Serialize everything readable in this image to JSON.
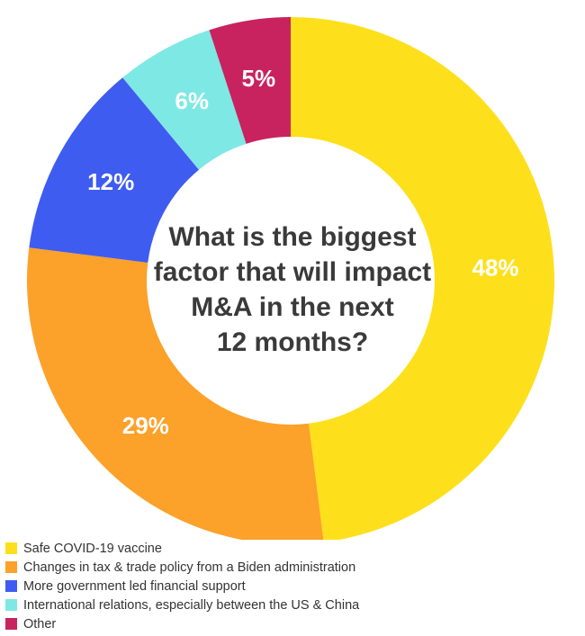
{
  "chart_data": {
    "type": "pie",
    "variant": "donut",
    "title_lines": [
      "What is the biggest",
      "factor that will impact",
      "M&A in the next",
      "12 months?"
    ],
    "slices": [
      {
        "label": "Safe COVID-19 vaccine",
        "value": 48,
        "display": "48%",
        "color": "#fde01b"
      },
      {
        "label": "Changes in tax & trade policy from a Biden administration",
        "value": 29,
        "display": "29%",
        "color": "#fca12a"
      },
      {
        "label": "More government led financial support",
        "value": 12,
        "display": "12%",
        "color": "#3f5cf0"
      },
      {
        "label": "International relations, especially between the US & China",
        "value": 6,
        "display": "6%",
        "color": "#7ee8e4"
      },
      {
        "label": "Other",
        "value": 5,
        "display": "5%",
        "color": "#c8235f"
      }
    ],
    "legend_position": "bottom-left"
  }
}
